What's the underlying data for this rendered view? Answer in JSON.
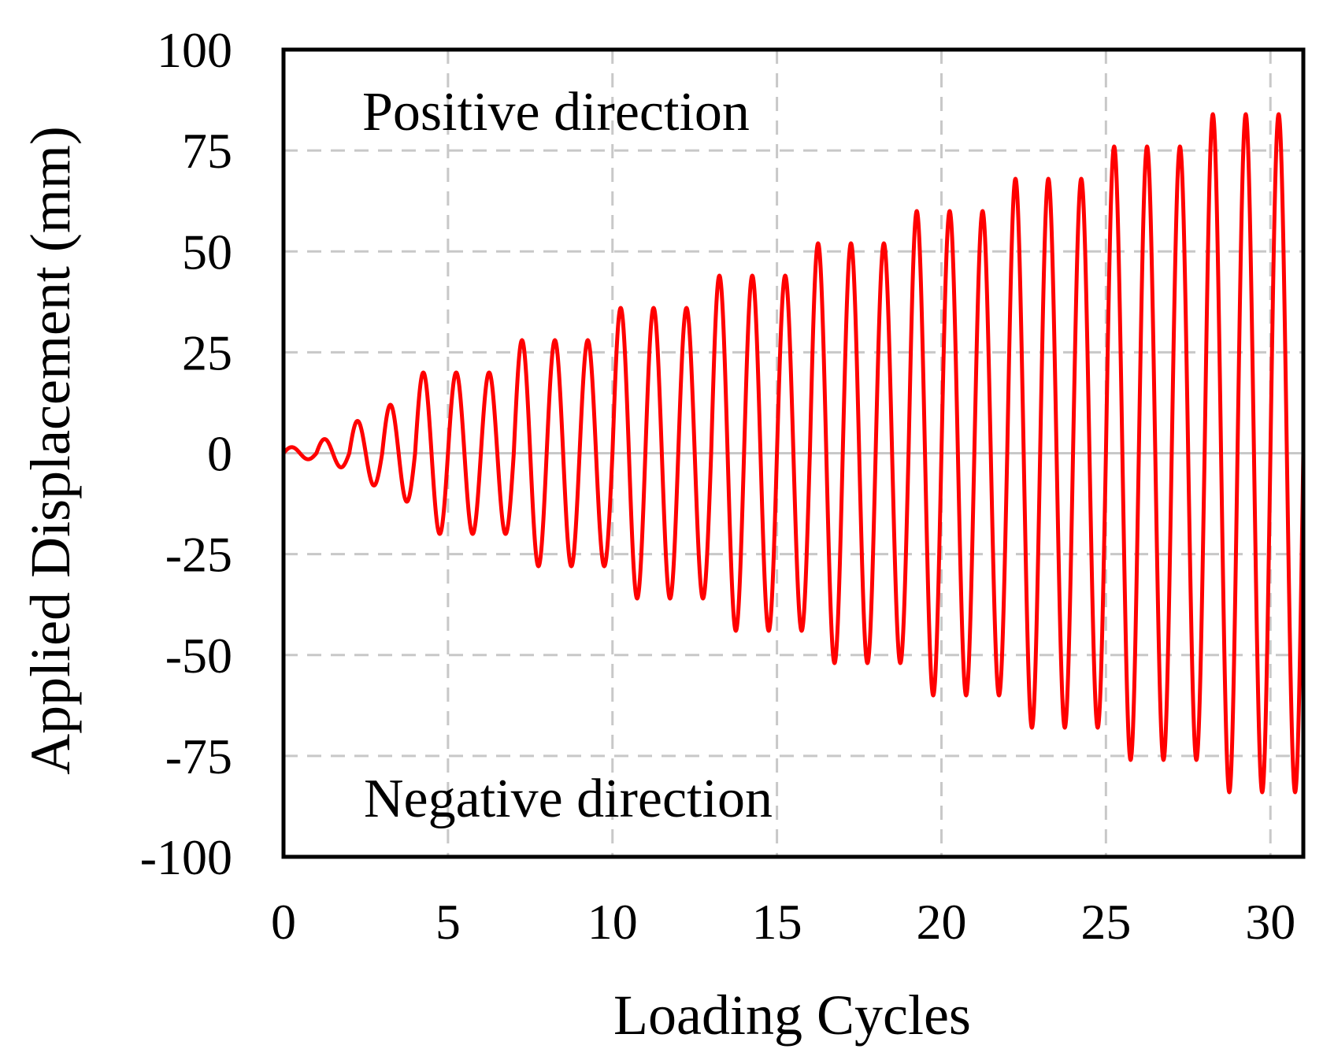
{
  "chart_data": {
    "type": "line",
    "title": "",
    "xlabel": "Loading Cycles",
    "ylabel": "Applied Displacement (mm)",
    "xlim": [
      0,
      31
    ],
    "ylim": [
      -100,
      100
    ],
    "x_ticks": [
      0,
      5,
      10,
      15,
      20,
      25,
      30
    ],
    "y_ticks": [
      100,
      75,
      50,
      25,
      0,
      -25,
      -50,
      -75,
      -100
    ],
    "x_tick_labels": [
      "0",
      "5",
      "10",
      "15",
      "20",
      "25",
      "30"
    ],
    "y_tick_labels": [
      "100",
      "75",
      "50",
      "25",
      "0",
      "-25",
      "-50",
      "-75",
      "-100"
    ],
    "grid": true,
    "annotations": {
      "positive": "Positive direction",
      "negative": "Negative direction"
    },
    "series": [
      {
        "name": "Applied displacement",
        "color": "#ff0000",
        "cycle_period": 1,
        "cycle_amplitudes_mm": [
          1.5,
          3.5,
          8,
          12,
          20,
          20,
          20,
          28,
          28,
          28,
          36,
          36,
          36,
          44,
          44,
          44,
          52,
          52,
          52,
          60,
          60,
          60,
          68,
          68,
          68,
          76,
          76,
          76,
          84,
          84,
          84
        ]
      }
    ]
  }
}
